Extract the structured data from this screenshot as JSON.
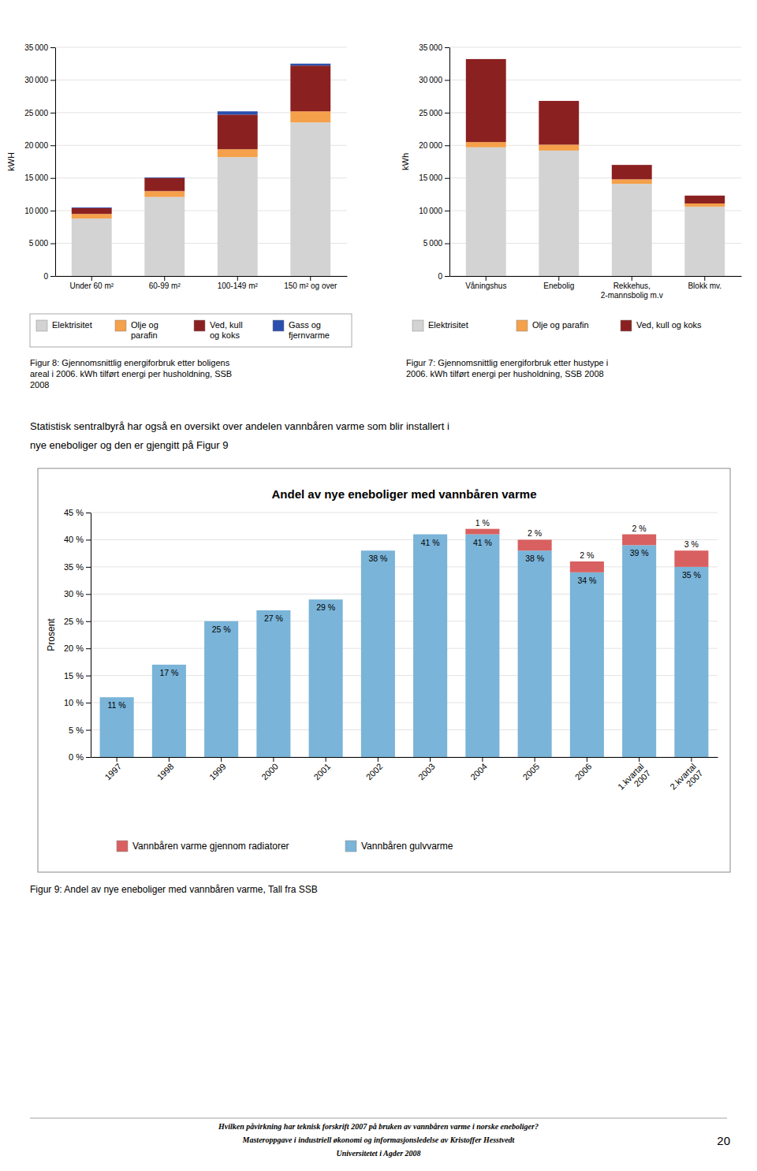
{
  "chart_data": [
    {
      "type": "bar",
      "stacked": true,
      "ylabel": "kWH",
      "categories": [
        "Under 60 m²",
        "60-99 m²",
        "100-149 m²",
        "150 m² og over"
      ],
      "series": [
        {
          "name": "Elektrisitet",
          "color": "#d3d3d3",
          "values": [
            8800,
            12100,
            18200,
            23500
          ]
        },
        {
          "name": "Olje og\nparafin",
          "color": "#f5a04a",
          "values": [
            700,
            900,
            1200,
            1700
          ]
        },
        {
          "name": "Ved, kull\nog koks",
          "color": "#8b2020",
          "values": [
            900,
            2000,
            5300,
            7000
          ]
        },
        {
          "name": "Gass og\nfjernvarme",
          "color": "#2b4fad",
          "values": [
            100,
            100,
            500,
            300
          ]
        }
      ],
      "ylim": [
        0,
        35000
      ],
      "yticks": [
        0,
        {
          "value": 5000,
          "label": "5 000"
        },
        {
          "value": 10000,
          "label": "10 000"
        },
        {
          "value": 15000,
          "label": "15 000"
        },
        {
          "value": 20000,
          "label": "20 000"
        },
        {
          "value": 25000,
          "label": "25 000"
        },
        {
          "value": 30000,
          "label": "30 000"
        },
        {
          "value": 35000,
          "label": "35 000"
        }
      ],
      "grid": true,
      "legend": "bottom",
      "caption": "Figur 8: Gjennomsnittlig energiforbruk etter boligens\nareal i 2006. kWh tilført energi per husholdning, SSB\n2008"
    },
    {
      "type": "bar",
      "stacked": true,
      "ylabel": "kWh",
      "categories": [
        "Våningshus",
        "Enebolig",
        "Rekkehus,\n2-mannsbolig m.v",
        "Blokk mv."
      ],
      "series": [
        {
          "name": "Elektrisitet",
          "color": "#d3d3d3",
          "values": [
            19700,
            19200,
            14100,
            10600
          ]
        },
        {
          "name": "Olje og parafin",
          "color": "#f5a04a",
          "values": [
            800,
            900,
            700,
            500
          ]
        },
        {
          "name": "Ved, kull og koks",
          "color": "#8b2020",
          "values": [
            12700,
            6700,
            2200,
            1200
          ]
        }
      ],
      "ylim": [
        0,
        35000
      ],
      "yticks": [
        0,
        {
          "value": 5000,
          "label": "5 000"
        },
        {
          "value": 10000,
          "label": "10 000"
        },
        {
          "value": 15000,
          "label": "15 000"
        },
        {
          "value": 20000,
          "label": "20 000"
        },
        {
          "value": 25000,
          "label": "25 000"
        },
        {
          "value": 30000,
          "label": "30 000"
        },
        {
          "value": 35000,
          "label": "35 000"
        }
      ],
      "grid": true,
      "legend": "bottom",
      "caption": "Figur 7: Gjennomsnittlig energiforbruk etter hustype i\n2006. kWh tilført energi per husholdning, SSB 2008"
    },
    {
      "type": "bar",
      "stacked": true,
      "title": "Andel av nye eneboliger med vannbåren varme",
      "ylabel": "Prosent",
      "categories": [
        "1997",
        "1998",
        "1999",
        "2000",
        "2001",
        "2002",
        "2003",
        "2004",
        "2005",
        "2006",
        "1.kvartal\n2007",
        "2.kvartal\n2007"
      ],
      "series": [
        {
          "name": "Vannbåren gulvvarme",
          "color": "#7ab4d8",
          "values": [
            11,
            17,
            25,
            27,
            29,
            38,
            41,
            41,
            38,
            34,
            39,
            35
          ],
          "value_labels": [
            "11 %",
            "17 %",
            "25 %",
            "27 %",
            "29 %",
            "38 %",
            "41 %",
            "41 %",
            "38 %",
            "34 %",
            "39 %",
            "35 %"
          ]
        },
        {
          "name": "Vannbåren varme gjennom radiatorer",
          "color": "#d96060",
          "values": [
            0,
            0,
            0,
            0,
            0,
            0,
            0,
            1,
            2,
            2,
            2,
            3
          ],
          "value_labels": [
            null,
            null,
            null,
            null,
            null,
            null,
            null,
            "1 %",
            "2 %",
            "2 %",
            "2 %",
            "3 %"
          ]
        }
      ],
      "ylim": [
        0,
        45
      ],
      "yticks": [
        {
          "value": 0,
          "label": "0 %"
        },
        {
          "value": 5,
          "label": "5 %"
        },
        {
          "value": 10,
          "label": "10 %"
        },
        {
          "value": 15,
          "label": "15 %"
        },
        {
          "value": 20,
          "label": "20 %"
        },
        {
          "value": 25,
          "label": "25 %"
        },
        {
          "value": 30,
          "label": "30 %"
        },
        {
          "value": 35,
          "label": "35 %"
        },
        {
          "value": 40,
          "label": "40 %"
        },
        {
          "value": 45,
          "label": "45 %"
        }
      ],
      "grid": true,
      "legend": "bottom",
      "data_labels": true,
      "caption": "Figur 9: Andel av nye eneboliger med vannbåren varme, Tall fra SSB"
    }
  ],
  "page": {
    "body_text": [
      "Statistisk sentralbyrå har også en oversikt over andelen vannbåren varme som blir installert i",
      "nye eneboliger og den er gjengitt på Figur 9"
    ],
    "footer": [
      "Hvilken påvirkning har teknisk forskrift 2007 på bruken av vannbåren varme i norske eneboliger?",
      "Masteroppgave i industriell økonomi og informasjonsledelse av Kristoffer Hesstvedt",
      "Universitetet i Agder 2008"
    ],
    "page_number": "20"
  }
}
